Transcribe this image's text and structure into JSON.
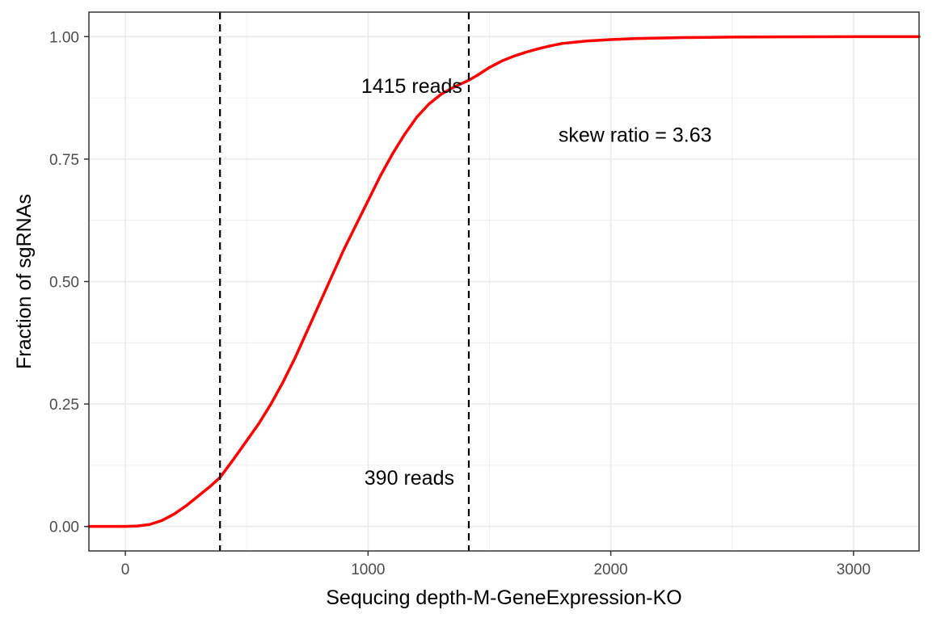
{
  "chart_data": {
    "type": "line",
    "title": "",
    "xlabel": "Sequcing depth-M-GeneExpression-KO",
    "ylabel": "Fraction of sgRNAs",
    "xlim": [
      -150,
      3270
    ],
    "ylim": [
      -0.05,
      1.05
    ],
    "x_ticks": [
      0,
      1000,
      2000,
      3000
    ],
    "x_tick_labels": [
      "0",
      "1000",
      "2000",
      "3000"
    ],
    "y_ticks": [
      0,
      0.25,
      0.5,
      0.75,
      1.0
    ],
    "y_tick_labels": [
      "0.00",
      "0.25",
      "0.50",
      "0.75",
      "1.00"
    ],
    "grid": true,
    "legend": "none",
    "series": [
      {
        "color": "#ff0000",
        "x": [
          -150,
          0,
          50,
          100,
          150,
          200,
          250,
          300,
          350,
          390,
          450,
          500,
          550,
          600,
          650,
          700,
          750,
          800,
          850,
          900,
          950,
          1000,
          1050,
          1100,
          1150,
          1200,
          1250,
          1300,
          1350,
          1415,
          1450,
          1500,
          1550,
          1600,
          1650,
          1700,
          1750,
          1800,
          1900,
          2000,
          2100,
          2200,
          2300,
          2500,
          2700,
          3000,
          3270
        ],
        "y": [
          0.0,
          0.0,
          0.001,
          0.004,
          0.012,
          0.025,
          0.042,
          0.062,
          0.082,
          0.1,
          0.14,
          0.175,
          0.21,
          0.25,
          0.295,
          0.345,
          0.4,
          0.455,
          0.51,
          0.565,
          0.615,
          0.665,
          0.715,
          0.76,
          0.8,
          0.835,
          0.862,
          0.882,
          0.896,
          0.911,
          0.921,
          0.937,
          0.95,
          0.96,
          0.968,
          0.975,
          0.981,
          0.986,
          0.991,
          0.994,
          0.996,
          0.997,
          0.998,
          0.999,
          0.9995,
          1.0,
          1.0
        ]
      }
    ],
    "vlines": [
      390,
      1415
    ],
    "annotations": [
      {
        "text": "1415 reads",
        "x": 1180,
        "y": 0.9
      },
      {
        "text": "390 reads",
        "x": 1170,
        "y": 0.1
      },
      {
        "text": "skew ratio = 3.63",
        "x": 2100,
        "y": 0.8
      }
    ]
  },
  "colors": {
    "line": "#ff0000",
    "grid": "#ebebeb",
    "panel_border": "#333333",
    "vline": "#000000"
  }
}
